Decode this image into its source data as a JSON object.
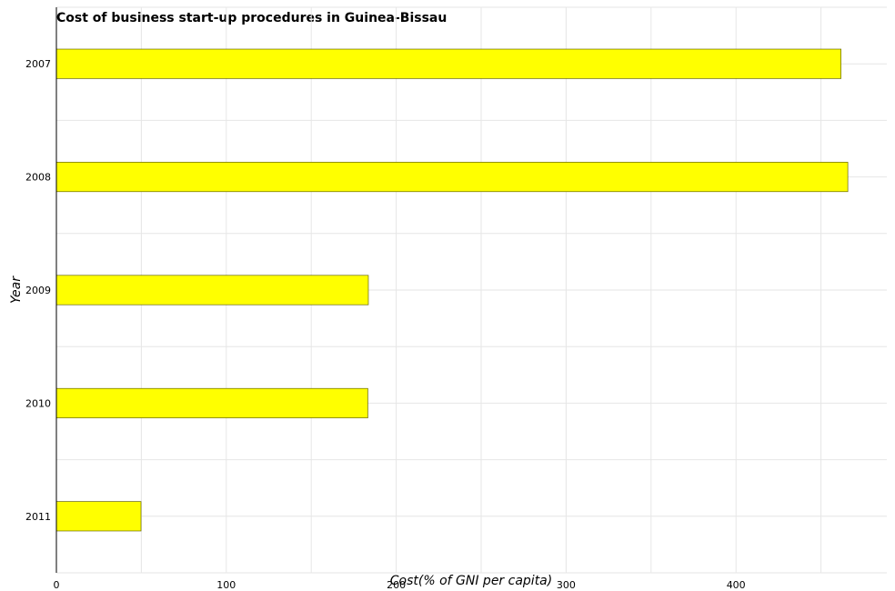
{
  "chart_data": {
    "type": "bar",
    "orientation": "horizontal",
    "title": "Cost of business start-up procedures in Guinea-Bissau",
    "xlabel": "Cost(% of GNI per capita)",
    "ylabel": "Year",
    "categories": [
      "2007",
      "2008",
      "2009",
      "2010",
      "2011"
    ],
    "values": [
      461.8,
      465.8,
      183.6,
      183.3,
      49.8
    ],
    "xlim": [
      0,
      490
    ],
    "xticks": [
      0,
      100,
      200,
      300,
      400
    ],
    "grid": true,
    "bar_color": "#ffff00"
  }
}
